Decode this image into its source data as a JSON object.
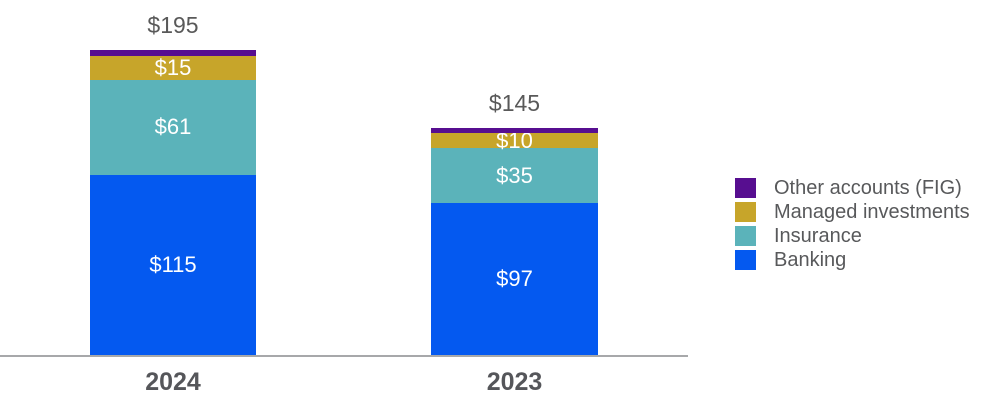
{
  "chart_data": {
    "type": "bar",
    "stacked": true,
    "title": "",
    "categories": [
      "2024",
      "2023"
    ],
    "series": [
      {
        "name": "Banking",
        "color": "#0459F0",
        "values": [
          115,
          97
        ],
        "data_labels": [
          "$115",
          "$97"
        ]
      },
      {
        "name": "Insurance",
        "color": "#5BB3BA",
        "values": [
          61,
          35
        ],
        "data_labels": [
          "$61",
          "$35"
        ]
      },
      {
        "name": "Managed investments",
        "color": "#C7A52A",
        "values": [
          15,
          10
        ],
        "data_labels": [
          "$15",
          "$10"
        ]
      },
      {
        "name": "Other accounts (FIG)",
        "color": "#570E90",
        "values": [
          4,
          3
        ],
        "data_labels": [
          null,
          null
        ],
        "values_estimated_from_height": true
      }
    ],
    "totals": {
      "labels": [
        "$195",
        "$145"
      ],
      "values": [
        195,
        145
      ]
    },
    "legend": {
      "position": "right",
      "items": [
        {
          "label": "Other accounts (FIG)",
          "color": "#570E90"
        },
        {
          "label": "Managed investments",
          "color": "#C7A52A"
        },
        {
          "label": "Insurance",
          "color": "#5BB3BA"
        },
        {
          "label": "Banking",
          "color": "#0459F0"
        }
      ]
    },
    "axes": {
      "x_tick_labels": [
        "2024",
        "2023"
      ],
      "y_axis_visible": false,
      "grid": false,
      "baseline_color": "#A7A8AA"
    },
    "text_colors": {
      "total_label": "#595959",
      "category_label": "#55565A",
      "legend_label": "#58595B",
      "segment_label": "#FFFFFF"
    }
  }
}
